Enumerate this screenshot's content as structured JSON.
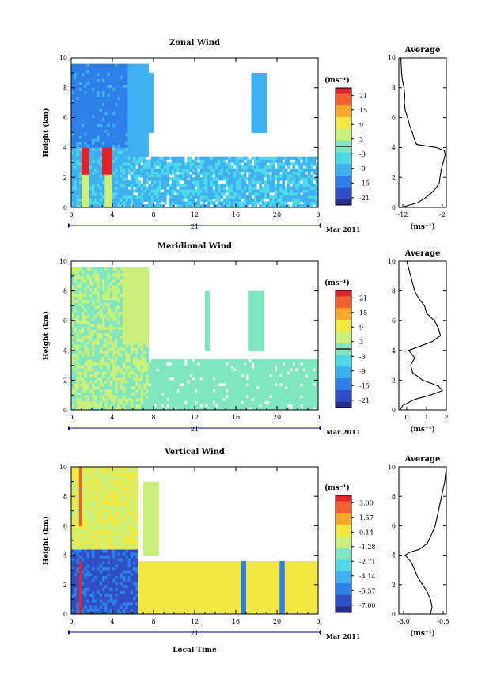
{
  "chart_data": [
    {
      "type": "heatmap",
      "title": "Zonal Wind",
      "ylabel": "Height (km)",
      "ylim": [
        0,
        10
      ],
      "yticks": [
        "0",
        "2",
        "4",
        "6",
        "8",
        "10"
      ],
      "xticks": [
        "0",
        "4",
        "8",
        "12",
        "16",
        "20",
        "0"
      ],
      "xlim": [
        0,
        24
      ],
      "date_tick": "21",
      "date_label": "Mar 2011",
      "colorbar": {
        "unit": "(ms⁻¹)",
        "ticks": [
          "21",
          "15",
          "9",
          "3",
          "-3",
          "-9",
          "-15",
          "-21"
        ],
        "range": [
          -24,
          24
        ]
      },
      "average": {
        "title": "Average",
        "xlabel": "(ms⁻¹)",
        "xticks": [
          "-12",
          "-2"
        ],
        "xlim": [
          -13,
          -1
        ],
        "ylim": [
          0,
          10
        ],
        "profile": [
          [
            -12.3,
            0.0
          ],
          [
            -8.3,
            0.3
          ],
          [
            -6.5,
            0.6
          ],
          [
            -4.6,
            1.0
          ],
          [
            -3.6,
            1.3
          ],
          [
            -2.8,
            1.6
          ],
          [
            -2.6,
            2.0
          ],
          [
            -2.3,
            2.5
          ],
          [
            -1.8,
            3.0
          ],
          [
            -1.3,
            3.5
          ],
          [
            -1.5,
            3.8
          ],
          [
            -3.5,
            4.0
          ],
          [
            -8.5,
            4.2
          ],
          [
            -9.0,
            4.5
          ],
          [
            -9.6,
            5.0
          ],
          [
            -10.3,
            5.5
          ],
          [
            -10.8,
            6.0
          ],
          [
            -11.4,
            6.5
          ],
          [
            -11.6,
            7.0
          ],
          [
            -11.5,
            7.5
          ],
          [
            -11.7,
            8.0
          ],
          [
            -12.1,
            8.5
          ],
          [
            -12.3,
            9.0
          ],
          [
            -12.4,
            9.5
          ],
          [
            -12.5,
            10.0
          ]
        ]
      }
    },
    {
      "type": "heatmap",
      "title": "Meridional Wind",
      "ylabel": "Height (km)",
      "ylim": [
        0,
        10
      ],
      "yticks": [
        "0",
        "2",
        "4",
        "6",
        "8",
        "10"
      ],
      "xticks": [
        "0",
        "4",
        "8",
        "12",
        "16",
        "20",
        "0"
      ],
      "xlim": [
        0,
        24
      ],
      "date_tick": "21",
      "date_label": "Mar 2011",
      "colorbar": {
        "unit": "(ms⁻¹)",
        "ticks": [
          "21",
          "15",
          "9",
          "3",
          "-3",
          "-9",
          "-15",
          "-21"
        ],
        "range": [
          -24,
          24
        ]
      },
      "average": {
        "title": "Average",
        "xlabel": "(ms⁻¹)",
        "xticks": [
          "0",
          "1",
          "2"
        ],
        "xlim": [
          -0.4,
          2
        ],
        "ylim": [
          0,
          10
        ],
        "profile": [
          [
            -0.35,
            0.0
          ],
          [
            -0.2,
            0.3
          ],
          [
            0.4,
            0.7
          ],
          [
            1.2,
            1.0
          ],
          [
            1.8,
            1.3
          ],
          [
            1.6,
            1.6
          ],
          [
            0.8,
            2.0
          ],
          [
            0.3,
            2.5
          ],
          [
            0.2,
            3.0
          ],
          [
            0.4,
            3.5
          ],
          [
            0.1,
            4.0
          ],
          [
            0.7,
            4.3
          ],
          [
            1.3,
            4.6
          ],
          [
            1.7,
            5.0
          ],
          [
            1.6,
            5.5
          ],
          [
            1.4,
            6.0
          ],
          [
            1.0,
            6.5
          ],
          [
            0.9,
            7.0
          ],
          [
            0.6,
            7.5
          ],
          [
            0.4,
            8.0
          ],
          [
            0.3,
            8.5
          ],
          [
            0.2,
            9.0
          ],
          [
            0.1,
            9.5
          ],
          [
            0.0,
            10.0
          ]
        ]
      }
    },
    {
      "type": "heatmap",
      "title": "Vertical Wind",
      "ylabel": "Height (km)",
      "xlabel": "Local Time",
      "ylim": [
        0,
        10
      ],
      "yticks": [
        "0",
        "2",
        "4",
        "6",
        "8",
        "10"
      ],
      "xticks": [
        "0",
        "4",
        "8",
        "12",
        "16",
        "20",
        "0"
      ],
      "xlim": [
        0,
        24
      ],
      "date_tick": "21",
      "date_label": "Mar 2011",
      "colorbar": {
        "unit": "(ms⁻¹)",
        "ticks": [
          "3.00",
          "1.57",
          "0.14",
          "-1.28",
          "-2.71",
          "-4.14",
          "-5.57",
          "-7.00"
        ],
        "range": [
          -8,
          4
        ]
      },
      "average": {
        "title": "Average",
        "xlabel": "(ms⁻¹)",
        "xticks": [
          "-3.0",
          "-0.5"
        ],
        "xlim": [
          -3.3,
          -0.3
        ],
        "ylim": [
          0,
          10
        ],
        "profile": [
          [
            -1.3,
            0.0
          ],
          [
            -1.2,
            0.5
          ],
          [
            -1.3,
            1.0
          ],
          [
            -1.5,
            1.5
          ],
          [
            -1.8,
            2.0
          ],
          [
            -2.1,
            2.5
          ],
          [
            -2.3,
            3.0
          ],
          [
            -2.5,
            3.5
          ],
          [
            -2.9,
            4.0
          ],
          [
            -2.6,
            4.2
          ],
          [
            -2.0,
            4.4
          ],
          [
            -1.5,
            4.8
          ],
          [
            -1.2,
            5.5
          ],
          [
            -1.0,
            6.0
          ],
          [
            -0.9,
            6.5
          ],
          [
            -0.8,
            7.0
          ],
          [
            -0.7,
            7.5
          ],
          [
            -0.6,
            8.0
          ],
          [
            -0.5,
            8.5
          ],
          [
            -0.4,
            9.0
          ],
          [
            -0.35,
            9.5
          ],
          [
            -0.3,
            10.0
          ]
        ]
      }
    }
  ],
  "colors": {
    "scale": [
      "#2a2d8c",
      "#2f4fc4",
      "#2f7fe8",
      "#3fb0f0",
      "#4fd9e8",
      "#7fe6c0",
      "#c8f07a",
      "#f2e840",
      "#f7a92a",
      "#f06030",
      "#e0242a"
    ],
    "contour": "#000000",
    "axis_rule": "#000080"
  }
}
